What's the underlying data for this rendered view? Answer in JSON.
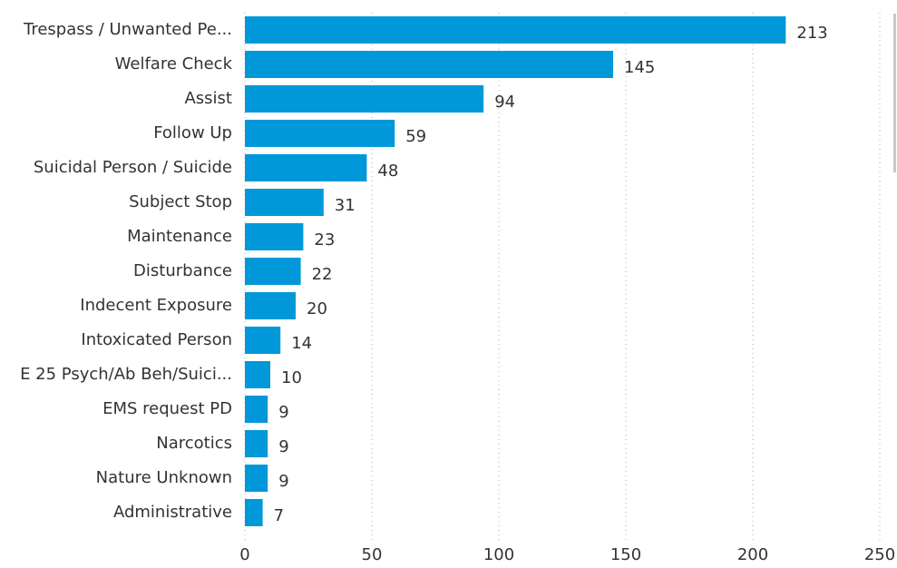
{
  "chart_data": {
    "type": "barh",
    "categories": [
      "Trespass / Unwanted Pe...",
      "Welfare Check",
      "Assist",
      "Follow Up",
      "Suicidal Person / Suicide",
      "Subject Stop",
      "Maintenance",
      "Disturbance",
      "Indecent Exposure",
      "Intoxicated Person",
      "E 25 Psych/Ab Beh/Suici...",
      "EMS request PD",
      "Narcotics",
      "Nature Unknown",
      "Administrative"
    ],
    "values": [
      213,
      145,
      94,
      59,
      48,
      31,
      23,
      22,
      20,
      14,
      10,
      9,
      9,
      9,
      7
    ],
    "color": "#0098d8",
    "xlim": [
      0,
      250
    ],
    "xticks": [
      0,
      50,
      100,
      150,
      200,
      250
    ],
    "grid": true
  }
}
